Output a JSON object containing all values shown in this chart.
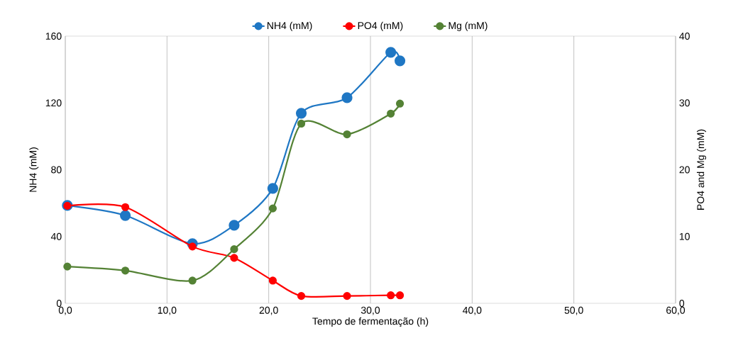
{
  "chart_data": {
    "type": "line",
    "xlabel": "Tempo de fermentação (h)",
    "ylabel": "NH4 (mM)",
    "y2label": "PO4 and Mg (mM)",
    "x": [
      0.2,
      5.9,
      12.5,
      16.6,
      20.4,
      23.2,
      27.7,
      32.0,
      32.9
    ],
    "series": [
      {
        "name": "NH4 (mM)",
        "color": "#1f77c4",
        "values": [
          58.6,
          52.6,
          35.7,
          46.7,
          68.8,
          113.8,
          123.1,
          150.3,
          145.2
        ]
      },
      {
        "name": "PO4 (mM)",
        "color": "#ff0000",
        "axis": "y2",
        "values": [
          14.6,
          14.4,
          8.5,
          6.8,
          3.4,
          1.1,
          1.1,
          1.2,
          1.2
        ]
      },
      {
        "name": "Mg (mM)",
        "color": "#548235",
        "axis": "y2",
        "values": [
          5.5,
          4.9,
          3.4,
          8.1,
          14.2,
          26.9,
          25.3,
          28.4,
          29.9
        ]
      }
    ],
    "xlim": [
      0,
      60
    ],
    "xticks": [
      {
        "value": 0,
        "label": "0,0"
      },
      {
        "value": 10,
        "label": "10,0"
      },
      {
        "value": 20,
        "label": "20,0"
      },
      {
        "value": 30,
        "label": "30,0"
      },
      {
        "value": 40,
        "label": "40,0"
      },
      {
        "value": 50,
        "label": "50,0"
      },
      {
        "value": 60,
        "label": "60,0"
      }
    ],
    "ylim": [
      0,
      160
    ],
    "yticks": [
      0,
      40,
      80,
      120,
      160
    ],
    "y2lim": [
      0,
      40
    ],
    "y2ticks": [
      0,
      10,
      20,
      30,
      40
    ],
    "grid": "x",
    "legend": "top",
    "marker": "circle",
    "line_style": "solid"
  }
}
